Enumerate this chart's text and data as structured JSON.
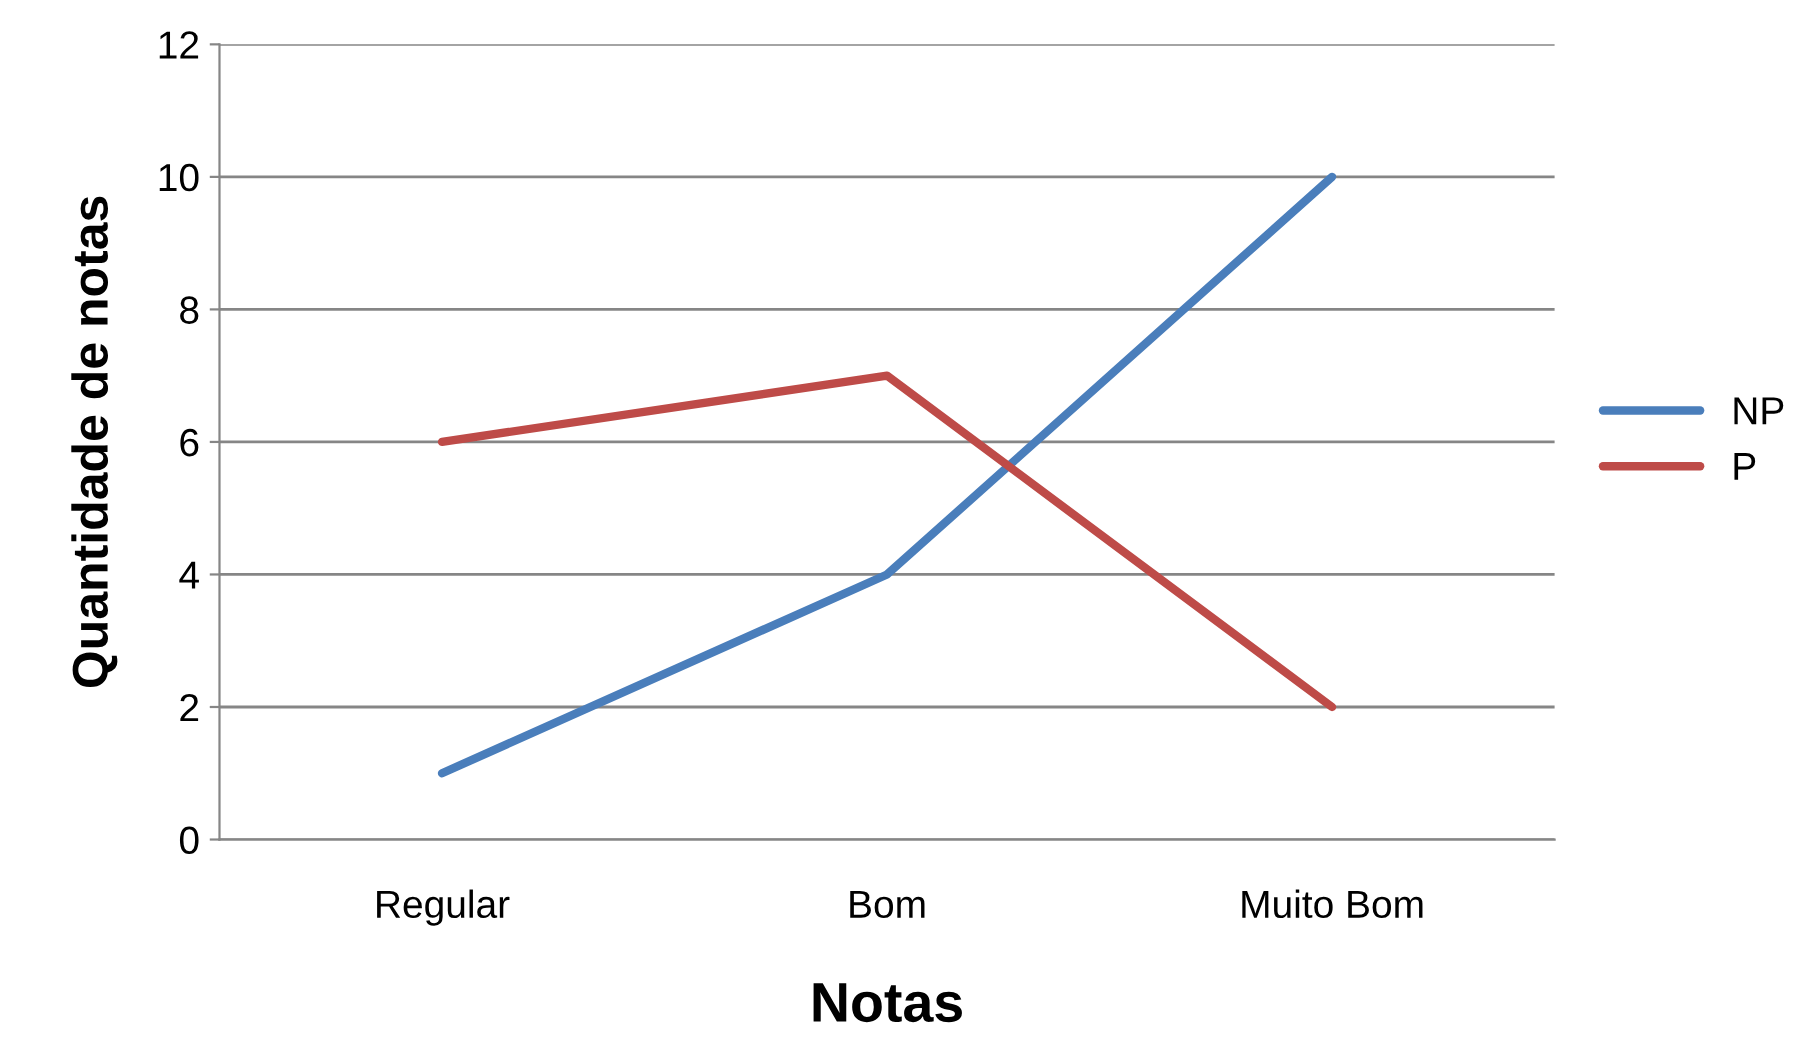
{
  "chart_data": {
    "type": "line",
    "xlabel": "Notas",
    "ylabel": "Quantidade de notas",
    "categories": [
      "Regular",
      "Bom",
      "Muito Bom"
    ],
    "series": [
      {
        "name": "NP",
        "color": "#4a7ebb",
        "values": [
          1,
          4,
          10
        ]
      },
      {
        "name": "P",
        "color": "#be4b48",
        "values": [
          6,
          7,
          2
        ]
      }
    ],
    "ylim": [
      0,
      12
    ],
    "yticks": [
      0,
      2,
      4,
      6,
      8,
      10,
      12
    ],
    "grid": "y",
    "legend": "right",
    "marker": "none",
    "line_style": "solid"
  }
}
